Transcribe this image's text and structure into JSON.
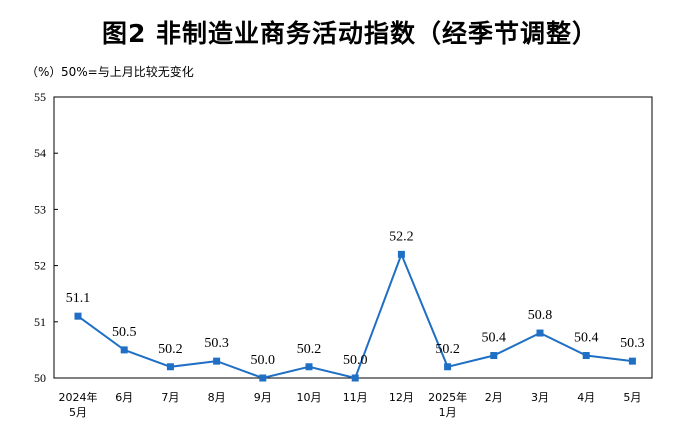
{
  "title": "图2  非制造业商务活动指数（经季节调整）",
  "unit_label": "（%）",
  "note": "50%=与上月比较无变化",
  "chart_data": {
    "type": "line",
    "title": "图2  非制造业商务活动指数（经季节调整）",
    "ylabel": "（%）",
    "xlabel": "",
    "ylim": [
      50,
      55
    ],
    "yticks": [
      "50",
      "51",
      "52",
      "53",
      "54",
      "55"
    ],
    "grid": false,
    "categories": [
      [
        "2024年",
        "5月"
      ],
      [
        "6月"
      ],
      [
        "7月"
      ],
      [
        "8月"
      ],
      [
        "9月"
      ],
      [
        "10月"
      ],
      [
        "11月"
      ],
      [
        "12月"
      ],
      [
        "2025年",
        "1月"
      ],
      [
        "2月"
      ],
      [
        "3月"
      ],
      [
        "4月"
      ],
      [
        "5月"
      ]
    ],
    "series": [
      {
        "values": [
          51.1,
          50.5,
          50.2,
          50.3,
          50.0,
          50.2,
          50.0,
          52.2,
          50.2,
          50.4,
          50.8,
          50.4,
          50.3
        ],
        "labels": [
          "51.1",
          "50.5",
          "50.2",
          "50.3",
          "50.0",
          "50.2",
          "50.0",
          "52.2",
          "50.2",
          "50.4",
          "50.8",
          "50.4",
          "50.3"
        ],
        "color": "#1f6fc5",
        "marker": "square"
      }
    ]
  }
}
